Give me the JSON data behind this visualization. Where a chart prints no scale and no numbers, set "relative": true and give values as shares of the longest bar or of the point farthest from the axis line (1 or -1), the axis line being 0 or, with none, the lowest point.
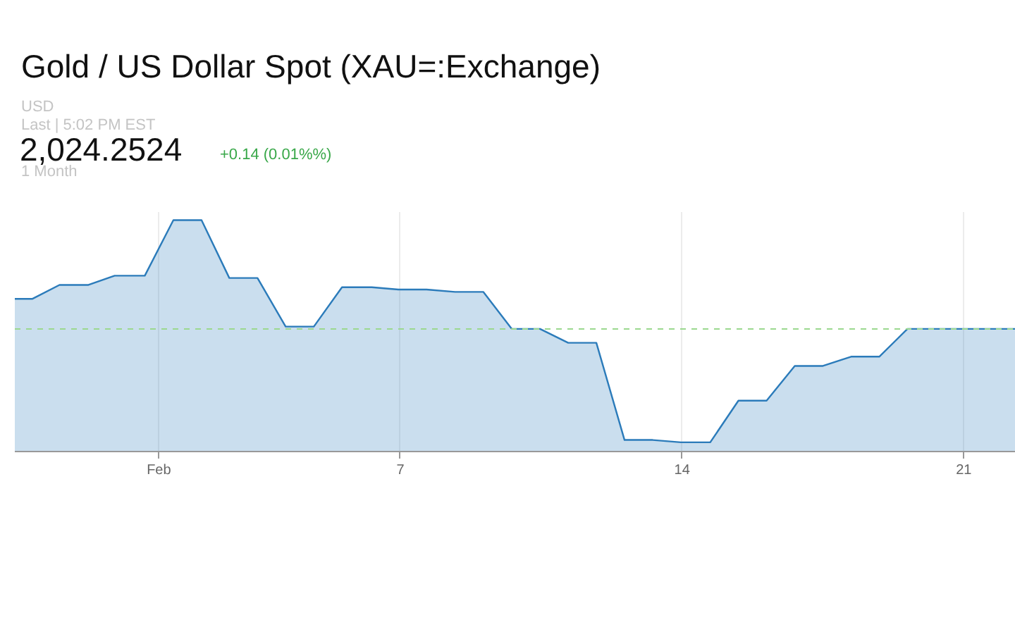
{
  "chart_data": {
    "type": "area",
    "title": "Gold / US Dollar Spot (XAU=:Exchange)",
    "annotations": [
      "USD",
      "Last | 5:02 PM EST",
      "2,024.2524",
      "+0.14 (0.01%%)",
      "1 Month"
    ],
    "relative": true,
    "x": [
      -2.58,
      -2.14,
      -1.47,
      -0.75,
      -0.1,
      0.65,
      1.36,
      2.06,
      2.75,
      3.45,
      4.15,
      4.85,
      5.55,
      6.29,
      6.95,
      7.65,
      8.36,
      9.06,
      9.77,
      10.47,
      11.17,
      11.87,
      12.57,
      13.27,
      13.97,
      14.7,
      15.4,
      16.1,
      16.8,
      17.5,
      18.2,
      18.9,
      19.6,
      20.3,
      21.0,
      21.7,
      22.29
    ],
    "series": [
      {
        "color": "#2b7bba",
        "values": [
          0.66,
          0.66,
          0.72,
          0.72,
          0.76,
          0.76,
          1,
          1,
          0.75,
          0.75,
          0.54,
          0.54,
          0.71,
          0.71,
          0.7,
          0.7,
          0.69,
          0.69,
          0.53,
          0.53,
          0.47,
          0.47,
          0.05,
          0.05,
          0.04,
          0.04,
          0.22,
          0.22,
          0.37,
          0.37,
          0.41,
          0.41,
          0.53,
          0.53,
          0.53,
          0.53,
          0.53
        ]
      }
    ],
    "xlim": [
      -2.58,
      22.29
    ],
    "xticks": [
      {
        "value": 1,
        "label": "Feb"
      },
      7,
      14,
      21
    ],
    "ref_lines": [
      {
        "axis": "y",
        "value": 0.53,
        "color": "#9bd88f",
        "line_style": "dashed"
      }
    ],
    "grid": "x"
  }
}
